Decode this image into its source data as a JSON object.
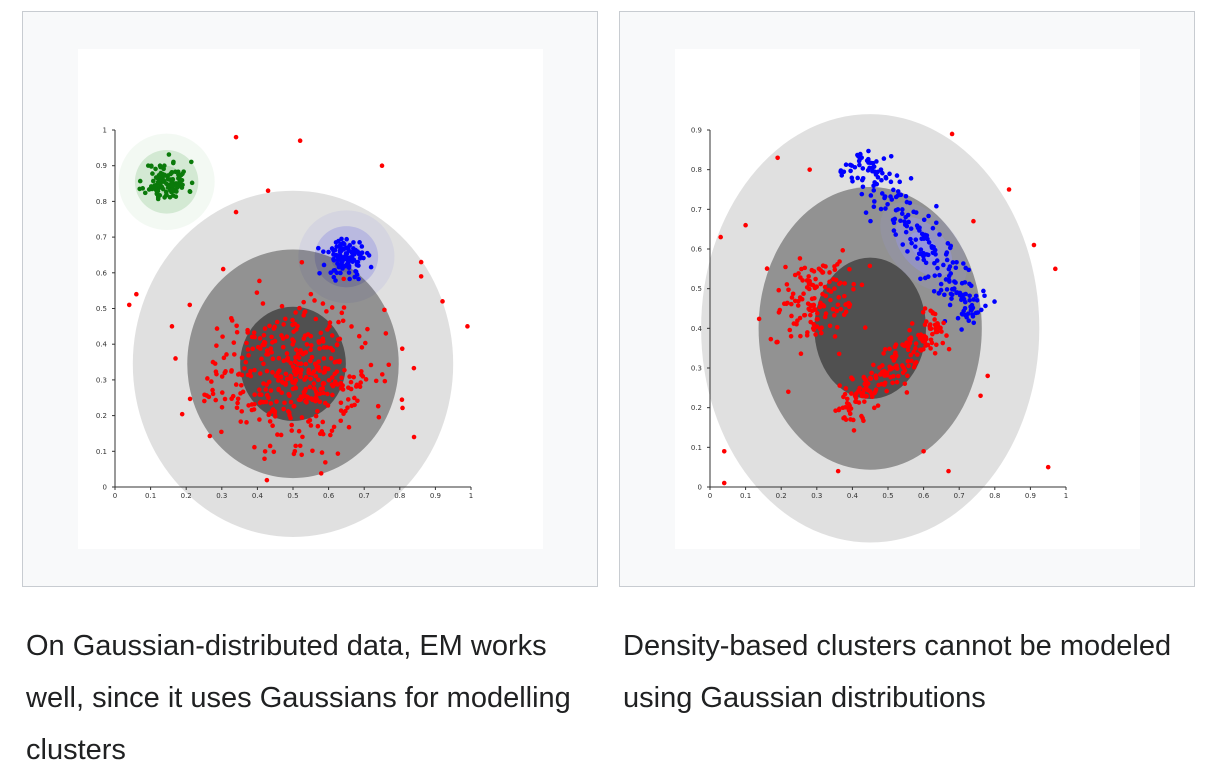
{
  "captions": {
    "left": "On Gaussian-distributed data, EM works well, since it uses Gaussians for modelling clusters",
    "right": "Density-based clusters cannot be modeled using Gaussian distributions"
  },
  "colors": {
    "red": "#ff0000",
    "green": "#0a7a0a",
    "blue": "#0000ff",
    "pink_region": "#ff9999",
    "blue_region": "#9999ff",
    "green_region": "#99cc99"
  },
  "chart_data": [
    {
      "type": "scatter",
      "title": "",
      "xlabel": "",
      "ylabel": "",
      "xlim": [
        0,
        1
      ],
      "ylim": [
        0,
        1
      ],
      "x_ticks": [
        "0",
        "0.1",
        "0.2",
        "0.3",
        "0.4",
        "0.5",
        "0.6",
        "0.7",
        "0.8",
        "0.9",
        "1"
      ],
      "y_ticks": [
        "0",
        "0.1",
        "0.2",
        "0.3",
        "0.4",
        "0.5",
        "0.6",
        "0.7",
        "0.8",
        "0.9",
        "1"
      ],
      "series": [
        {
          "color": "green",
          "cluster": {
            "cx": 0.145,
            "cy": 0.855,
            "sx": 0.03,
            "sy": 0.028,
            "n": 110
          }
        },
        {
          "color": "blue",
          "cluster": {
            "cx": 0.65,
            "cy": 0.645,
            "sx": 0.028,
            "sy": 0.027,
            "n": 115
          }
        },
        {
          "color": "red",
          "cluster": {
            "cx": 0.5,
            "cy": 0.32,
            "sx": 0.11,
            "sy": 0.1,
            "n": 420
          }
        },
        {
          "color": "red",
          "points": [
            [
              0.34,
              0.98
            ],
            [
              0.52,
              0.97
            ],
            [
              0.75,
              0.9
            ],
            [
              0.43,
              0.83
            ],
            [
              0.34,
              0.77
            ],
            [
              0.04,
              0.51
            ],
            [
              0.06,
              0.54
            ],
            [
              0.16,
              0.45
            ],
            [
              0.17,
              0.36
            ],
            [
              0.86,
              0.63
            ],
            [
              0.86,
              0.59
            ],
            [
              0.92,
              0.52
            ],
            [
              0.99,
              0.45
            ],
            [
              0.84,
              0.14
            ],
            [
              0.21,
              0.51
            ]
          ]
        }
      ],
      "gaussians": [
        {
          "color": "green",
          "cx": 0.145,
          "cy": 0.855,
          "rx": 0.27,
          "ry": 0.27,
          "angle": 0
        },
        {
          "color": "blue",
          "cx": 0.65,
          "cy": 0.645,
          "rx": 0.27,
          "ry": 0.26,
          "angle": 0
        },
        {
          "color": "red",
          "cx": 0.5,
          "cy": 0.345,
          "rx": 0.9,
          "ry": 0.97,
          "angle": 0
        }
      ]
    },
    {
      "type": "scatter",
      "title": "",
      "xlabel": "",
      "ylabel": "",
      "xlim": [
        0,
        1
      ],
      "ylim": [
        0,
        0.9
      ],
      "x_ticks": [
        "0",
        "0.1",
        "0.2",
        "0.3",
        "0.4",
        "0.5",
        "0.6",
        "0.7",
        "0.8",
        "0.9",
        "1"
      ],
      "y_ticks": [
        "0",
        "0.1",
        "0.2",
        "0.3",
        "0.4",
        "0.5",
        "0.6",
        "0.7",
        "0.8",
        "0.9"
      ],
      "series": [
        {
          "color": "blue",
          "band": {
            "x1": 0.41,
            "y1": 0.84,
            "x2": 0.76,
            "y2": 0.42,
            "spread": 0.03,
            "n": 230
          }
        },
        {
          "color": "red",
          "band": {
            "x1": 0.36,
            "y1": 0.18,
            "x2": 0.66,
            "y2": 0.42,
            "spread": 0.025,
            "n": 190
          }
        },
        {
          "color": "red",
          "cluster": {
            "cx": 0.3,
            "cy": 0.47,
            "sx": 0.06,
            "sy": 0.06,
            "n": 140
          }
        },
        {
          "color": "red",
          "points": [
            [
              0.68,
              0.89
            ],
            [
              0.19,
              0.83
            ],
            [
              0.28,
              0.8
            ],
            [
              0.84,
              0.75
            ],
            [
              0.1,
              0.66
            ],
            [
              0.03,
              0.63
            ],
            [
              0.91,
              0.61
            ],
            [
              0.97,
              0.55
            ],
            [
              0.74,
              0.67
            ],
            [
              0.04,
              0.09
            ],
            [
              0.04,
              0.01
            ],
            [
              0.6,
              0.09
            ],
            [
              0.36,
              0.04
            ],
            [
              0.67,
              0.04
            ],
            [
              0.95,
              0.05
            ],
            [
              0.78,
              0.28
            ],
            [
              0.76,
              0.23
            ],
            [
              0.22,
              0.24
            ]
          ]
        }
      ],
      "gaussians": [
        {
          "color": "red",
          "cx": 0.45,
          "cy": 0.4,
          "rx": 0.95,
          "ry": 1.08,
          "angle": 0
        },
        {
          "color": "blue",
          "cx": 0.6,
          "cy": 0.605,
          "rx": 0.18,
          "ry": 0.27,
          "angle": -0.75
        }
      ]
    }
  ]
}
